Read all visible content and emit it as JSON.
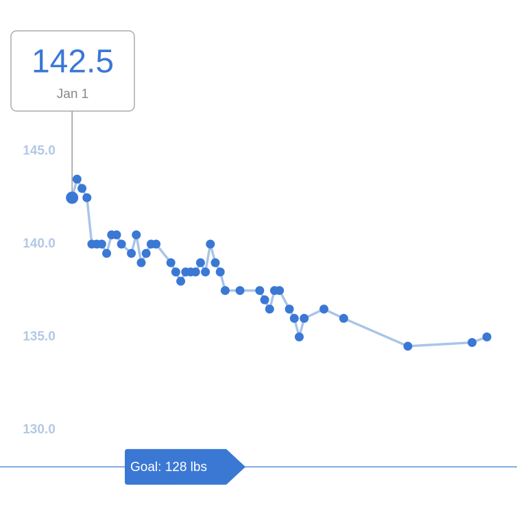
{
  "chart_data": {
    "type": "line",
    "x": [
      0,
      1,
      2,
      3,
      4,
      5,
      6,
      7,
      8,
      9,
      10,
      12,
      13,
      14,
      15,
      16,
      17,
      20,
      21,
      22,
      23,
      24,
      25,
      26,
      27,
      28,
      29,
      30,
      31,
      34,
      38,
      39,
      40,
      41,
      42,
      44,
      45,
      46,
      47,
      51,
      55,
      68,
      81,
      84
    ],
    "series": [
      {
        "color": "#3a78d4",
        "line_color": "#a9c4e8",
        "values": [
          142.5,
          143.5,
          143.0,
          142.5,
          140.0,
          140.0,
          140.0,
          139.5,
          140.5,
          140.5,
          140.0,
          139.5,
          140.5,
          139.0,
          139.5,
          140.0,
          140.0,
          139.0,
          138.5,
          138.0,
          138.5,
          138.5,
          138.5,
          139.0,
          138.5,
          140.0,
          139.0,
          138.5,
          137.5,
          137.5,
          137.5,
          137.0,
          136.5,
          137.5,
          137.5,
          136.5,
          136.0,
          135.0,
          136.0,
          136.5,
          136.0,
          134.5,
          134.7,
          135.0
        ]
      }
    ],
    "xlim": [
      -14.6,
      90.1
    ],
    "ylim": [
      125.3,
      153.15
    ],
    "yticks": [
      {
        "value": 145,
        "label": "145.0"
      },
      {
        "value": 140,
        "label": "140.0"
      },
      {
        "value": 135,
        "label": "135.0"
      },
      {
        "value": 130,
        "label": "130.0"
      }
    ],
    "grid": false,
    "tooltip_date": "Jan 1",
    "goal": {
      "value": 128,
      "label": "Goal: 128 lbs"
    }
  }
}
